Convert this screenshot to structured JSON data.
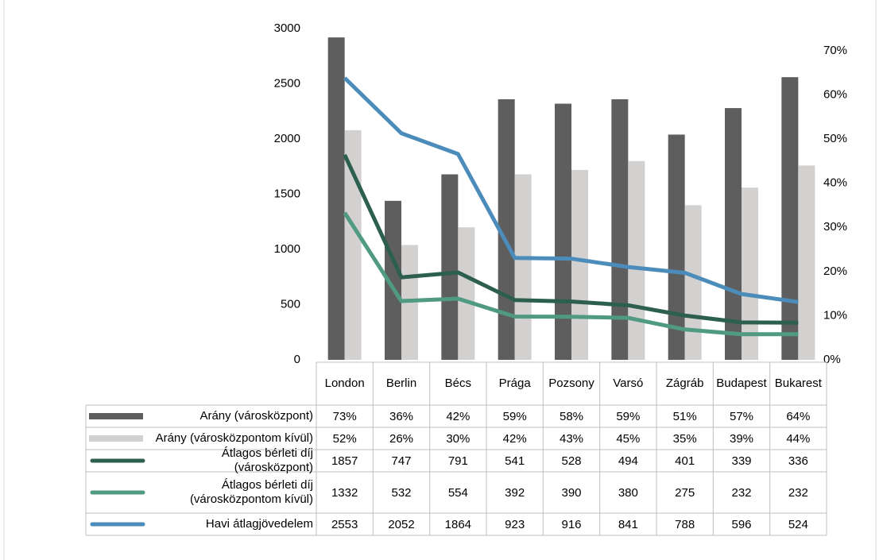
{
  "chart_data": {
    "type": "combo",
    "categories": [
      "London",
      "Berlin",
      "Bécs",
      "Prága",
      "Pozsony",
      "Varsó",
      "Zágráb",
      "Budapest",
      "Bukarest"
    ],
    "ylim": [
      0,
      3000
    ],
    "yticks": [
      0,
      500,
      1000,
      1500,
      2000,
      2500,
      3000
    ],
    "y2lim": [
      0,
      75
    ],
    "y2ticks": [
      {
        "value": 0,
        "label": "0%"
      },
      {
        "value": 10,
        "label": "10%"
      },
      {
        "value": 20,
        "label": "20%"
      },
      {
        "value": 30,
        "label": "30%"
      },
      {
        "value": 40,
        "label": "40%"
      },
      {
        "value": 50,
        "label": "50%"
      },
      {
        "value": 60,
        "label": "60%"
      },
      {
        "value": 70,
        "label": "70%"
      }
    ],
    "series": [
      {
        "name": "Arány (városközpont)",
        "type": "bar",
        "axis": "y2",
        "color": "#5e5e5e",
        "values": [
          73,
          36,
          42,
          59,
          58,
          59,
          51,
          57,
          64
        ],
        "value_labels": [
          "73%",
          "36%",
          "42%",
          "59%",
          "58%",
          "59%",
          "51%",
          "57%",
          "64%"
        ]
      },
      {
        "name": "Arány (városközpontom kívül)",
        "type": "bar",
        "axis": "y2",
        "color": "#d3d0d0",
        "values": [
          52,
          26,
          30,
          42,
          43,
          45,
          35,
          39,
          44
        ],
        "value_labels": [
          "52%",
          "26%",
          "30%",
          "42%",
          "43%",
          "45%",
          "35%",
          "39%",
          "44%"
        ]
      },
      {
        "name": "Átlagos bérleti díj (városközpont)",
        "type": "line",
        "color": "#2d5f4f",
        "values": [
          1857,
          747,
          791,
          541,
          528,
          494,
          401,
          339,
          336
        ]
      },
      {
        "name": "Átlagos bérleti díj (városközpontom kívül)",
        "type": "line",
        "color": "#4f9a80",
        "values": [
          1332,
          532,
          554,
          392,
          390,
          380,
          275,
          232,
          232
        ]
      },
      {
        "name": "Havi átlagjövedelem",
        "type": "line",
        "color": "#4c8cba",
        "values": [
          2553,
          2052,
          1864,
          923,
          916,
          841,
          788,
          596,
          524
        ]
      }
    ]
  }
}
